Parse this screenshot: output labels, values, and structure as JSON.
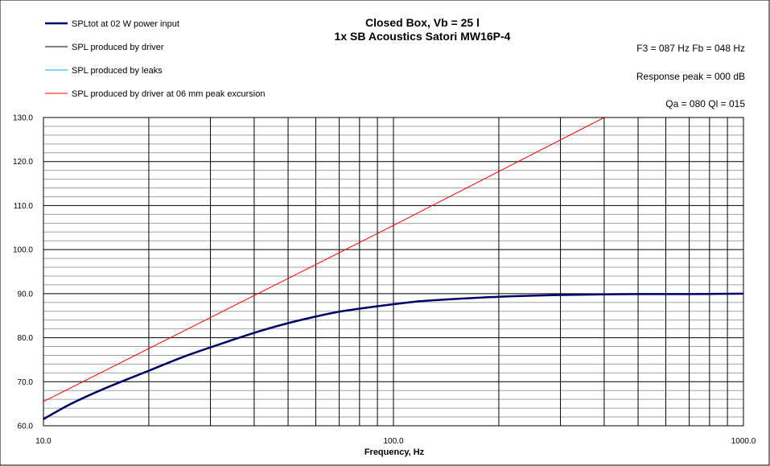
{
  "colors": {
    "spl_total": "#000066",
    "spl_driver": "#000000",
    "spl_leaks": "#00b0ff",
    "spl_excursion": "#ff0000",
    "grid_major": "#000000",
    "grid_minor": "#a0a0a0",
    "plot_bg": "#ffffff"
  },
  "chart_data": {
    "type": "line",
    "title": "Closed Box, Vb = 25 l",
    "subtitle": "1x SB Acoustics Satori MW16P-4",
    "xlabel": "Frequency, Hz",
    "ylabel": "",
    "xscale": "log",
    "xlim": [
      10,
      1000
    ],
    "ylim": [
      60,
      130
    ],
    "x_tick_labels": [
      "10.0",
      "100.0",
      "1000.0"
    ],
    "y_tick_labels": [
      "60.0",
      "70.0",
      "80.0",
      "90.0",
      "100.0",
      "110.0",
      "120.0",
      "130.0"
    ],
    "grid": true,
    "legend_position": "top-left",
    "annotations": [
      "F3 = 087  Hz  Fb = 048  Hz",
      "Response peak = 000  dB",
      "Qa = 080   Ql = 015"
    ],
    "series": [
      {
        "name": "SPLtot at 02 W power input",
        "x": [
          10,
          12,
          15,
          20,
          25,
          30,
          40,
          50,
          60,
          70,
          80,
          100,
          120,
          150,
          200,
          300,
          500,
          700,
          1000
        ],
        "y": [
          61.5,
          65,
          68.5,
          72.5,
          75.6,
          77.8,
          81.1,
          83.3,
          84.8,
          85.9,
          86.6,
          87.6,
          88.3,
          88.8,
          89.3,
          89.7,
          89.9,
          89.9,
          90.0
        ]
      },
      {
        "name": "SPL produced by driver",
        "x": [
          10,
          12,
          15,
          20,
          25,
          30,
          40,
          50,
          60,
          70,
          80,
          100,
          120,
          150,
          200,
          300,
          500,
          700,
          1000
        ],
        "y": [
          61.6,
          65.1,
          68.6,
          72.6,
          75.6,
          77.8,
          81.1,
          83.3,
          84.8,
          85.9,
          86.6,
          87.6,
          88.3,
          88.8,
          89.3,
          89.7,
          89.9,
          89.9,
          90.0
        ]
      },
      {
        "name": "SPL produced by leaks",
        "x": [],
        "y": []
      },
      {
        "name": "SPL produced by driver at 06 mm peak excursion",
        "x": [
          10,
          100,
          400
        ],
        "y": [
          65.5,
          105.5,
          130
        ]
      }
    ]
  }
}
